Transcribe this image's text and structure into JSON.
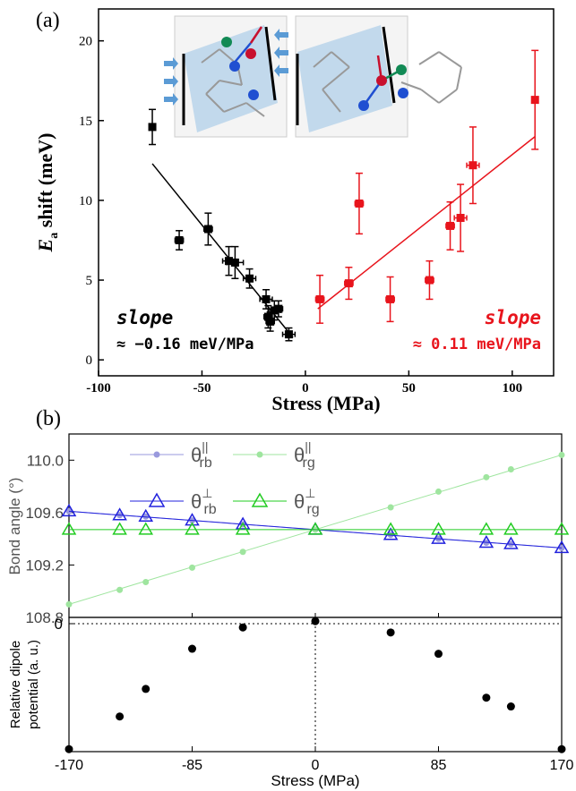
{
  "chart_data": [
    {
      "panel_label": "(a)",
      "type": "scatter",
      "xlabel": "Stress (MPa)",
      "ylabel_main": "E",
      "ylabel_sub": "a",
      "ylabel_rest": " shift (meV)",
      "xlim": [
        -100,
        120
      ],
      "ylim": [
        -1,
        22
      ],
      "xticks": [
        -100,
        -50,
        0,
        50,
        100
      ],
      "yticks": [
        0,
        5,
        10,
        15,
        20
      ],
      "series": [
        {
          "color": "#000000",
          "points": [
            {
              "x": -74,
              "y": 14.6,
              "xerr": 0,
              "yerr": 1.1
            },
            {
              "x": -61,
              "y": 7.5,
              "xerr": 2,
              "yerr": 0.6
            },
            {
              "x": -47,
              "y": 8.2,
              "xerr": 2,
              "yerr": 1.0
            },
            {
              "x": -37,
              "y": 6.2,
              "xerr": 3,
              "yerr": 0.9
            },
            {
              "x": -34,
              "y": 6.1,
              "xerr": 4,
              "yerr": 1.0
            },
            {
              "x": -27,
              "y": 5.1,
              "xerr": 3,
              "yerr": 0.6
            },
            {
              "x": -19,
              "y": 3.8,
              "xerr": 3,
              "yerr": 0.6
            },
            {
              "x": -18,
              "y": 2.7,
              "xerr": 2,
              "yerr": 0.7
            },
            {
              "x": -17,
              "y": 2.4,
              "xerr": 2,
              "yerr": 0.6
            },
            {
              "x": -15,
              "y": 3.1,
              "xerr": 3,
              "yerr": 0.6
            },
            {
              "x": -13,
              "y": 3.2,
              "xerr": 2,
              "yerr": 0.5
            },
            {
              "x": -8,
              "y": 1.6,
              "xerr": 3,
              "yerr": 0.4
            }
          ],
          "fit": {
            "x": [
              -74,
              -6
            ],
            "y": [
              12.3,
              1.4
            ]
          }
        },
        {
          "color": "#e8141c",
          "points": [
            {
              "x": 7,
              "y": 3.8,
              "xerr": 2,
              "yerr": 1.5
            },
            {
              "x": 21,
              "y": 4.8,
              "xerr": 2,
              "yerr": 1.0
            },
            {
              "x": 26,
              "y": 9.8,
              "xerr": 2,
              "yerr": 1.9
            },
            {
              "x": 41,
              "y": 3.8,
              "xerr": 2,
              "yerr": 1.4
            },
            {
              "x": 60,
              "y": 5.0,
              "xerr": 2,
              "yerr": 1.2
            },
            {
              "x": 70,
              "y": 8.4,
              "xerr": 2,
              "yerr": 1.5
            },
            {
              "x": 75,
              "y": 8.9,
              "xerr": 3,
              "yerr": 2.1
            },
            {
              "x": 81,
              "y": 12.2,
              "xerr": 3,
              "yerr": 2.4
            },
            {
              "x": 111,
              "y": 16.3,
              "xerr": 0,
              "yerr": 3.1
            }
          ],
          "fit": {
            "x": [
              6,
              111
            ],
            "y": [
              3.2,
              14.0
            ]
          }
        }
      ],
      "annotations": {
        "left_slope_label": "slope",
        "left_slope_value": "≈ −0.16 meV/MPa",
        "right_slope_label": "slope",
        "right_slope_value": "≈ 0.11 meV/MPa"
      }
    },
    {
      "panel_label": "(b)",
      "type": "scatter",
      "ylabel": "Bond angle (°)",
      "xlim": [
        -170,
        170
      ],
      "ylim": [
        108.8,
        110.2
      ],
      "yticks": [
        108.8,
        109.2,
        109.6,
        110.0
      ],
      "legend": [
        {
          "name": "θ",
          "sup": "||",
          "sub": "rb",
          "marker": "circle",
          "color": "#9999dd"
        },
        {
          "name": "θ",
          "sup": "||",
          "sub": "rg",
          "marker": "circle",
          "color": "#9fe59f"
        },
        {
          "name": "θ",
          "sup": "⊥",
          "sub": "rb",
          "marker": "triangle",
          "color": "#2222dd"
        },
        {
          "name": "θ",
          "sup": "⊥",
          "sub": "rg",
          "marker": "triangle",
          "color": "#22cc22"
        }
      ],
      "x": [
        -170,
        -135,
        -117,
        -85,
        -50,
        0,
        52,
        85,
        118,
        135,
        170
      ],
      "series": [
        {
          "values": [
            109.61,
            109.58,
            109.57,
            109.54,
            109.51,
            109.47,
            109.43,
            109.4,
            109.37,
            109.36,
            109.33
          ],
          "marker": "circle",
          "color": "#9999dd"
        },
        {
          "values": [
            108.9,
            109.01,
            109.07,
            109.18,
            109.3,
            109.47,
            109.64,
            109.76,
            109.87,
            109.93,
            110.04
          ],
          "marker": "circle",
          "color": "#9fe59f"
        },
        {
          "values": [
            109.61,
            109.58,
            109.57,
            109.54,
            109.51,
            109.47,
            109.43,
            109.4,
            109.37,
            109.36,
            109.33
          ],
          "marker": "triangle",
          "color": "#2222dd"
        },
        {
          "values": [
            109.47,
            109.47,
            109.47,
            109.47,
            109.47,
            109.47,
            109.47,
            109.47,
            109.47,
            109.47,
            109.47
          ],
          "marker": "triangle",
          "color": "#22cc22"
        }
      ]
    },
    {
      "type": "scatter",
      "xlabel": "Stress (MPa)",
      "ylabel_line1": "Relative dipole",
      "ylabel_line2": "potential (a. u.)",
      "xlim": [
        -170,
        170
      ],
      "ylim": [
        -1.02,
        0.05
      ],
      "xticks": [
        -170,
        -85,
        0,
        85,
        170
      ],
      "yticks": [
        0
      ],
      "x": [
        -170,
        -135,
        -117,
        -85,
        -50,
        0,
        52,
        85,
        118,
        135,
        170
      ],
      "values": [
        -1.0,
        -0.74,
        -0.52,
        -0.2,
        -0.03,
        0.02,
        -0.07,
        -0.24,
        -0.59,
        -0.66,
        -1.0
      ]
    }
  ]
}
